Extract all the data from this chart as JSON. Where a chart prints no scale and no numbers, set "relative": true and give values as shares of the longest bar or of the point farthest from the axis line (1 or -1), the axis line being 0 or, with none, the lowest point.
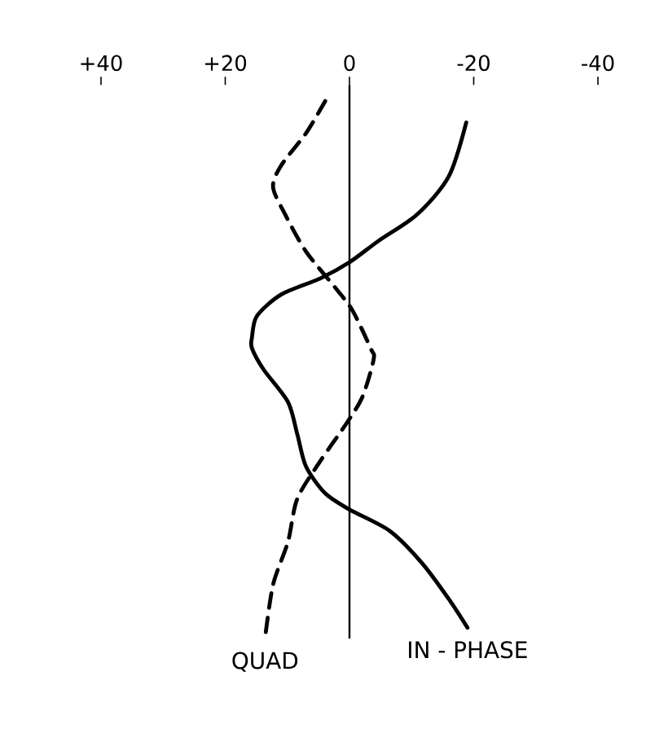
{
  "chart_data": {
    "type": "line",
    "relative": true,
    "xlim": [
      40,
      -40
    ],
    "xticks": [
      {
        "value": 40,
        "label": "+40"
      },
      {
        "value": 20,
        "label": "+20"
      },
      0,
      -20,
      -40
    ],
    "ref_lines": [
      {
        "axis": "x",
        "value": 0,
        "color": "#000000"
      }
    ],
    "series": [
      {
        "name": "QUAD",
        "color": "#000000",
        "line_style": "dashed",
        "x": [
          3.9,
          7,
          11,
          12.3,
          10.4,
          7,
          2.1,
          -0.5,
          -3.4,
          -3.9,
          -2.1,
          0.5,
          4.7,
          8.4,
          9.9,
          12.3,
          13.6
        ],
        "values": [
          1.0,
          0.94,
          0.88,
          0.84,
          0.79,
          0.72,
          0.65,
          0.61,
          0.54,
          0.52,
          0.45,
          0.4,
          0.33,
          0.26,
          0.18,
          0.1,
          0.0
        ]
      },
      {
        "name": "IN - PHASE",
        "color": "#000000",
        "line_style": "solid",
        "x": [
          -18.8,
          -16,
          -11,
          -4.7,
          0,
          4.7,
          11,
          14.9,
          15.7,
          15.7,
          13.8,
          9.9,
          8.4,
          7,
          3.9,
          0,
          -6.5,
          -11.7,
          -16.2,
          -19
        ],
        "values": [
          0.96,
          0.86,
          0.79,
          0.74,
          0.7,
          0.67,
          0.64,
          0.6,
          0.56,
          0.54,
          0.5,
          0.44,
          0.38,
          0.32,
          0.27,
          0.24,
          0.2,
          0.14,
          0.07,
          0.02
        ]
      }
    ]
  }
}
